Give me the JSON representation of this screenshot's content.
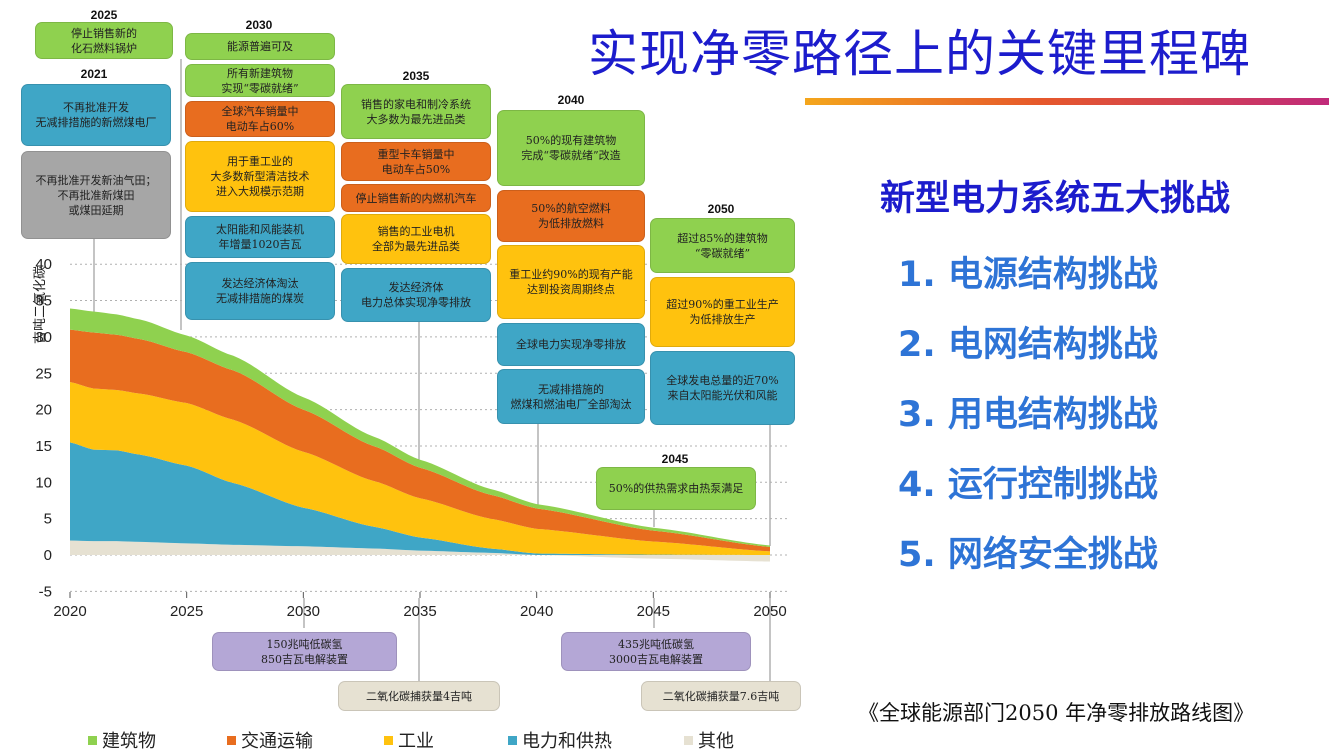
{
  "title": "实现净零路径上的关键里程碑",
  "right_panel": {
    "heading": "新型电力系统五大挑战",
    "items": [
      "1. 电源结构挑战",
      "2. 电网结构挑战",
      "3. 用电结构挑战",
      "4. 运行控制挑战",
      "5. 网络安全挑战"
    ]
  },
  "source": "《全球能源部门2050 年净零排放路线图》",
  "colors": {
    "buildings": "#8fd14f",
    "transport": "#e86d1f",
    "industry": "#ffc20e",
    "power": "#3fa6c6",
    "other": "#e6e1d2",
    "title_blue": "#1c1ccc",
    "challenge_blue": "#2e74d6"
  },
  "chart_data": {
    "type": "area",
    "stacked": true,
    "ylabel": "吉吨二氧化碳",
    "ylim": [
      -5,
      40
    ],
    "yticks": [
      -5,
      0,
      5,
      10,
      15,
      20,
      25,
      30,
      35,
      40
    ],
    "x": [
      2020,
      2021,
      2022,
      2023,
      2025,
      2027,
      2030,
      2033,
      2035,
      2038,
      2040,
      2045,
      2050
    ],
    "xticks": [
      2020,
      2025,
      2030,
      2035,
      2040,
      2045,
      2050
    ],
    "series": [
      {
        "name": "其他",
        "key": "other",
        "values": [
          2.0,
          1.9,
          1.9,
          1.8,
          1.6,
          1.4,
          1.2,
          0.9,
          0.6,
          0.3,
          0.0,
          -0.5,
          -0.9
        ]
      },
      {
        "name": "电力和供热",
        "key": "power",
        "values": [
          13.5,
          12.6,
          12.5,
          12.0,
          10.7,
          8.5,
          5.3,
          3.0,
          1.8,
          0.6,
          0.2,
          0.05,
          0.0
        ]
      },
      {
        "name": "工业",
        "key": "industry",
        "values": [
          8.3,
          8.4,
          8.3,
          8.4,
          8.6,
          8.7,
          7.7,
          6.3,
          5.4,
          4.1,
          3.4,
          1.8,
          0.5
        ]
      },
      {
        "name": "交通运输",
        "key": "transport",
        "values": [
          7.2,
          7.7,
          7.6,
          7.5,
          7.0,
          6.8,
          5.8,
          4.8,
          4.2,
          3.3,
          2.8,
          1.5,
          0.6
        ]
      },
      {
        "name": "建筑物",
        "key": "buildings",
        "values": [
          2.9,
          2.9,
          2.8,
          2.7,
          2.3,
          2.0,
          1.7,
          1.3,
          1.1,
          0.8,
          0.6,
          0.4,
          0.2
        ]
      }
    ],
    "legend": [
      {
        "label": "建筑物",
        "key": "buildings"
      },
      {
        "label": "交通运输",
        "key": "transport"
      },
      {
        "label": "工业",
        "key": "industry"
      },
      {
        "label": "电力和供热",
        "key": "power"
      },
      {
        "label": "其他",
        "key": "other"
      }
    ],
    "legend_position": "bottom",
    "milestones": [
      {
        "year_label": "2025",
        "boxes": [
          {
            "text": "停止销售新的\n化石燃料锅炉",
            "color": "green"
          }
        ]
      },
      {
        "year_label": "2021",
        "boxes": [
          {
            "text": "不再批准开发\n无减排措施的新燃煤电厂",
            "color": "blue"
          },
          {
            "text": "不再批准开发新油气田；\n不再批准新煤田\n或煤田延期",
            "color": "gray"
          }
        ]
      },
      {
        "year_label": "2030",
        "boxes": [
          {
            "text": "能源普遍可及",
            "color": "green"
          },
          {
            "text": "所有新建筑物\n实现“零碳就绪”",
            "color": "green"
          },
          {
            "text": "全球汽车销量中\n电动车占60%",
            "color": "orange"
          },
          {
            "text": "用于重工业的\n大多数新型清洁技术\n进入大规模示范期",
            "color": "yellow"
          },
          {
            "text": "太阳能和风能装机\n年增量1020吉瓦",
            "color": "blue"
          },
          {
            "text": "发达经济体淘汰\n无减排措施的煤炭",
            "color": "blue"
          }
        ]
      },
      {
        "year_label": "2035",
        "boxes": [
          {
            "text": "销售的家电和制冷系统\n大多数为最先进品类",
            "color": "green"
          },
          {
            "text": "重型卡车销量中\n电动车占50%",
            "color": "orange"
          },
          {
            "text": "停止销售新的内燃机汽车",
            "color": "orange"
          },
          {
            "text": "销售的工业电机\n全部为最先进品类",
            "color": "yellow"
          },
          {
            "text": "发达经济体\n电力总体实现净零排放",
            "color": "blue"
          }
        ]
      },
      {
        "year_label": "2040",
        "boxes": [
          {
            "text": "50%的现有建筑物\n完成“零碳就绪”改造",
            "color": "green"
          },
          {
            "text": "50%的航空燃料\n为低排放燃料",
            "color": "orange"
          },
          {
            "text": "重工业约90%的现有产能\n达到投资周期终点",
            "color": "yellow"
          },
          {
            "text": "全球电力实现净零排放",
            "color": "blue"
          },
          {
            "text": "无减排措施的\n燃煤和燃油电厂全部淘汰",
            "color": "blue"
          }
        ]
      },
      {
        "year_label": "2050",
        "boxes": [
          {
            "text": "超过85%的建筑物\n“零碳就绪”",
            "color": "green"
          },
          {
            "text": "超过90%的重工业生产\n为低排放生产",
            "color": "yellow"
          },
          {
            "text": "全球发电总量的近70%\n来自太阳能光伏和风能",
            "color": "blue"
          }
        ]
      },
      {
        "year_label": "2045",
        "boxes": [
          {
            "text": "50%的供热需求由热泵满足",
            "color": "green"
          }
        ]
      },
      {
        "year_label": "",
        "boxes": [
          {
            "text": "150兆吨低碳氢\n850吉瓦电解装置",
            "color": "purple"
          }
        ]
      },
      {
        "year_label": "",
        "boxes": [
          {
            "text": "二氧化碳捕获量4吉吨",
            "color": "tan"
          }
        ]
      },
      {
        "year_label": "",
        "boxes": [
          {
            "text": "435兆吨低碳氢\n3000吉瓦电解装置",
            "color": "purple"
          }
        ]
      },
      {
        "year_label": "",
        "boxes": [
          {
            "text": "二氧化碳捕获量7.6吉吨",
            "color": "tan"
          }
        ]
      }
    ]
  }
}
